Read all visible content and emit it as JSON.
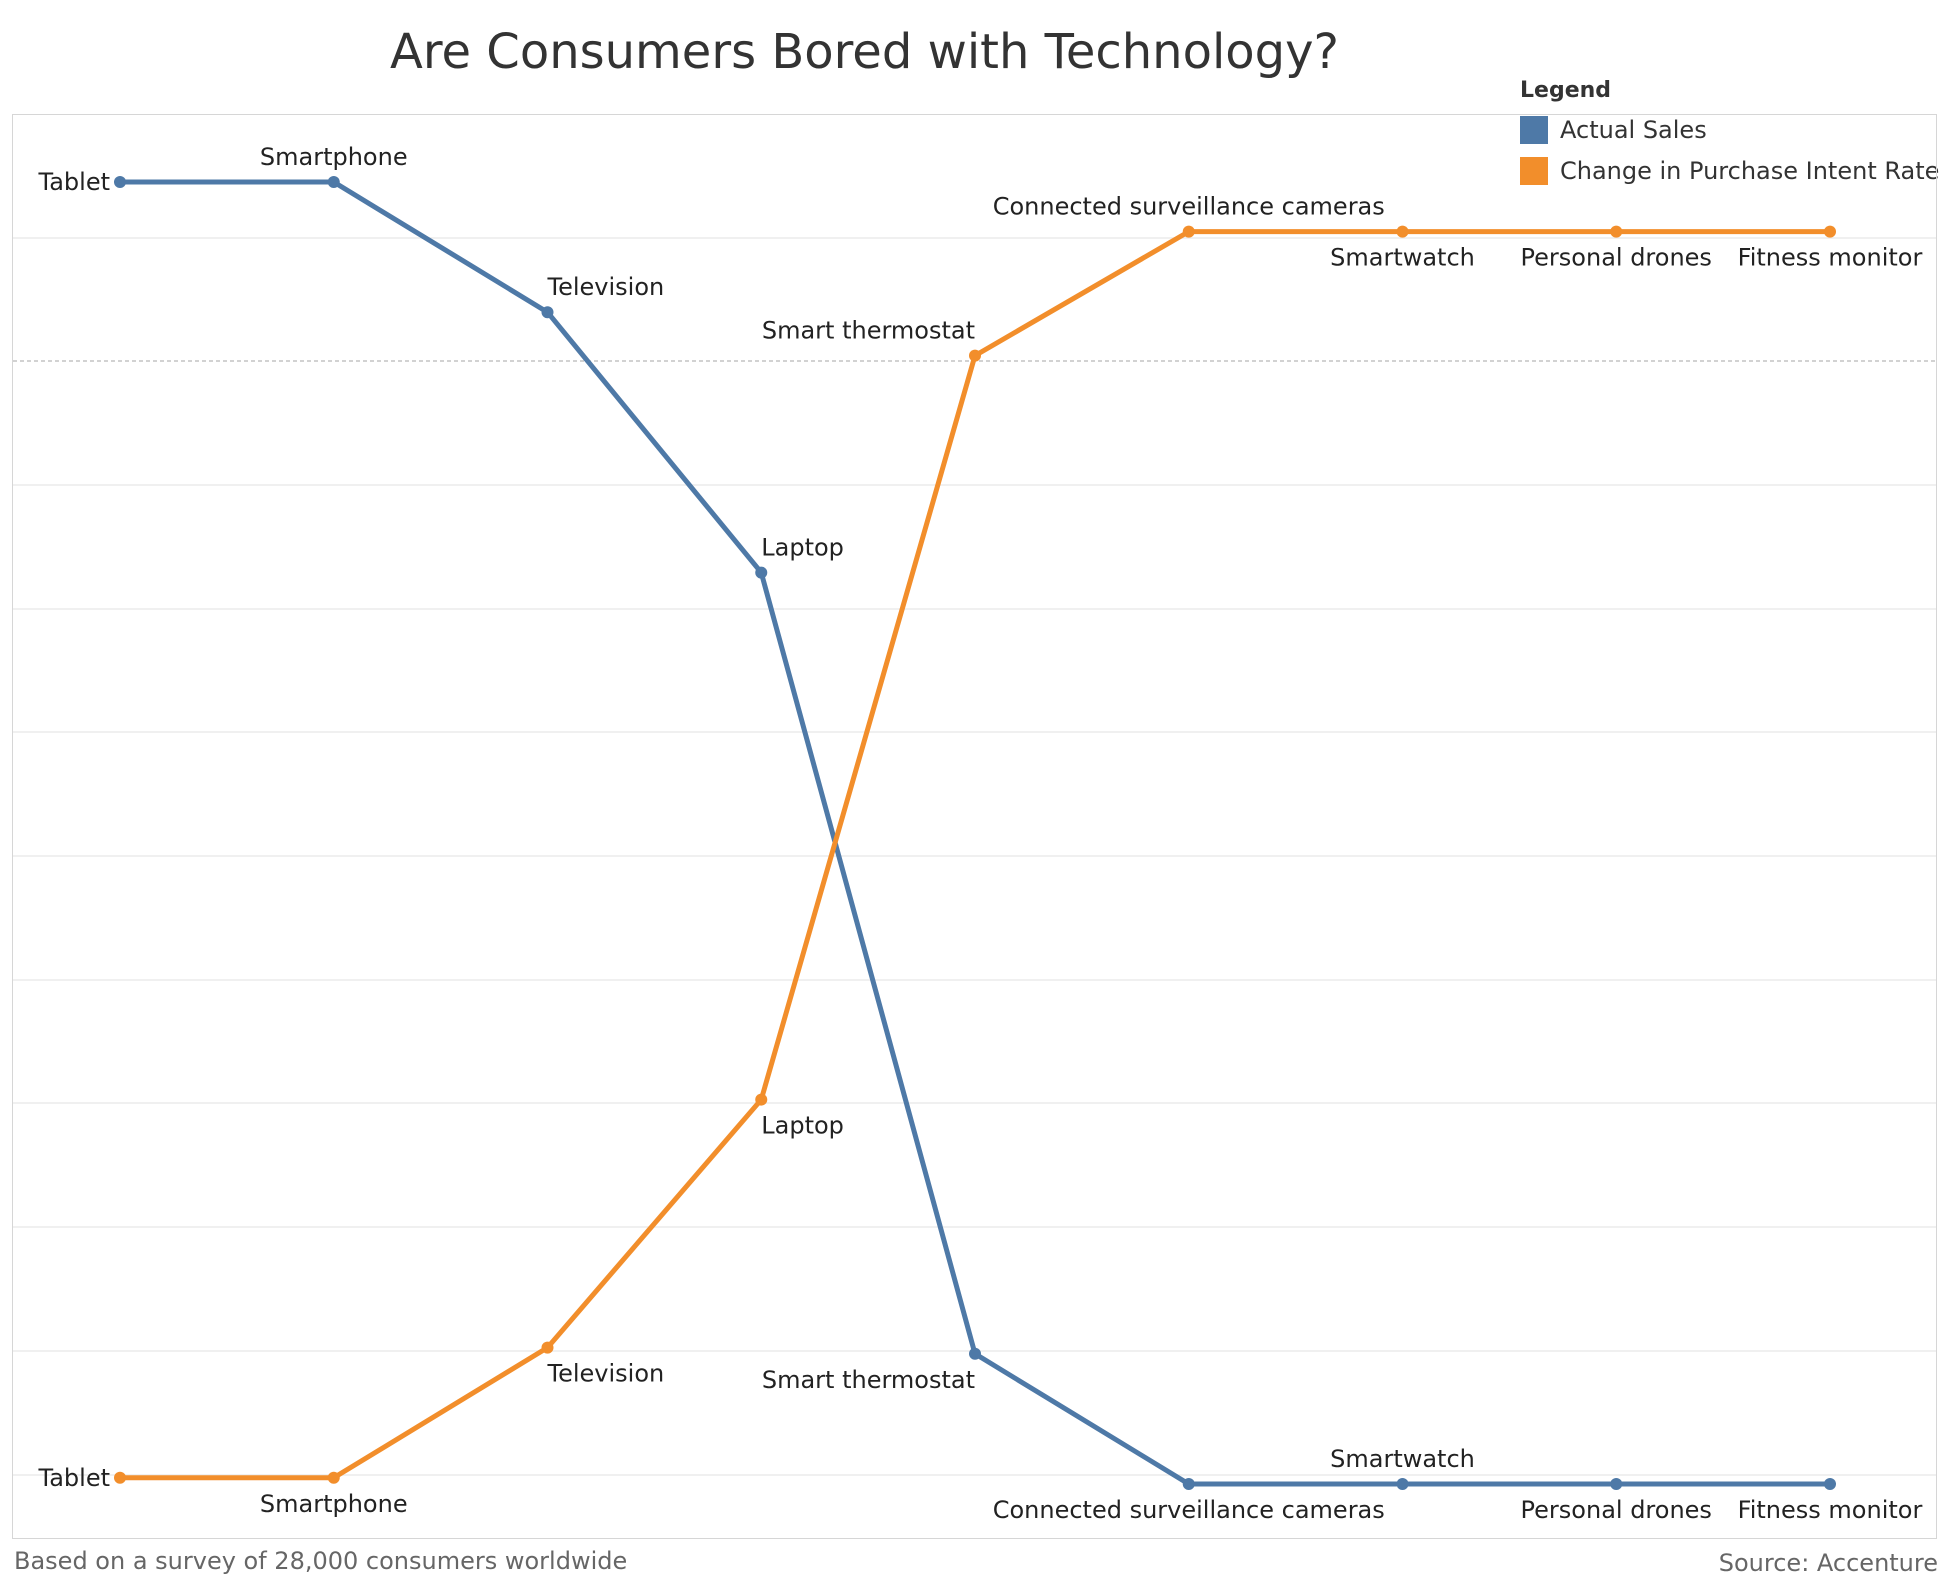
{
  "title": "Are Consumers Bored with Technology?",
  "legend": {
    "title": "Legend",
    "items": [
      {
        "label": "Actual Sales",
        "color": "#4e79a7"
      },
      {
        "label": "Change in Purchase Intent Rate",
        "color": "#f28e2b"
      }
    ]
  },
  "footer": {
    "note": "Based on a survey of 28,000 consumers worldwide",
    "source": "Source: Accenture"
  },
  "chart_data": {
    "type": "line",
    "title": "Are Consumers Bored with Technology?",
    "y_axis": "rank, 1 at top",
    "ylim": [
      0.6,
      12.1
    ],
    "grid": true,
    "legend_position": "top-right",
    "series": [
      {
        "name": "Actual Sales",
        "color": "#4e79a7",
        "points": [
          {
            "label": "Tablet",
            "x": 0,
            "y": 0.6,
            "label_pos": "left"
          },
          {
            "label": "Smartphone",
            "x": 1,
            "y": 0.6,
            "label_pos": "above"
          },
          {
            "label": "Television",
            "x": 2,
            "y": 1.65,
            "label_pos": "above"
          },
          {
            "label": "Laptop",
            "x": 3,
            "y": 3.75,
            "label_pos": "above"
          },
          {
            "label": "Smart thermostat",
            "x": 4,
            "y": 10.05,
            "label_pos": "below-left"
          },
          {
            "label": "Connected surveillance cameras",
            "x": 5,
            "y": 11.1,
            "label_pos": "below"
          },
          {
            "label": "Smartwatch",
            "x": 6,
            "y": 11.1,
            "label_pos": "above"
          },
          {
            "label": "Personal drones",
            "x": 7,
            "y": 11.1,
            "label_pos": "below"
          },
          {
            "label": "Fitness monitor",
            "x": 8,
            "y": 11.1,
            "label_pos": "below"
          }
        ]
      },
      {
        "name": "Change in Purchase Intent Rate",
        "color": "#f28e2b",
        "points": [
          {
            "label": "Tablet",
            "x": 0,
            "y": 11.05,
            "label_pos": "left"
          },
          {
            "label": "Smartphone",
            "x": 1,
            "y": 11.05,
            "label_pos": "below"
          },
          {
            "label": "Television",
            "x": 2,
            "y": 10.0,
            "label_pos": "below"
          },
          {
            "label": "Laptop",
            "x": 3,
            "y": 8.0,
            "label_pos": "below"
          },
          {
            "label": "Smart thermostat",
            "x": 4,
            "y": 2.0,
            "label_pos": "above-left"
          },
          {
            "label": "Connected surveillance cameras",
            "x": 5,
            "y": 1.0,
            "label_pos": "above"
          },
          {
            "label": "Smartwatch",
            "x": 6,
            "y": 1.0,
            "label_pos": "below"
          },
          {
            "label": "Personal drones",
            "x": 7,
            "y": 1.0,
            "label_pos": "below"
          },
          {
            "label": "Fitness monitor",
            "x": 8,
            "y": 1.0,
            "label_pos": "below"
          }
        ]
      }
    ]
  }
}
